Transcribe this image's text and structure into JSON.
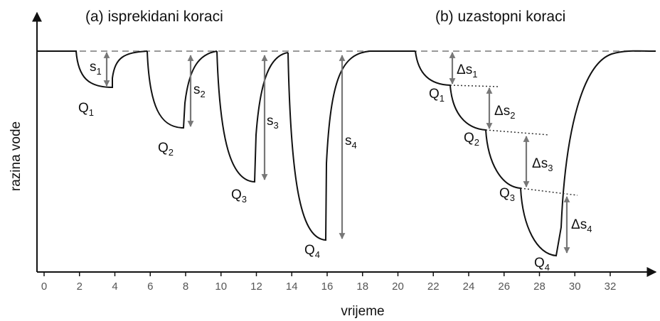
{
  "titles": {
    "a": "(a) isprekidani koraci",
    "b": "(b) uzastopni koraci"
  },
  "axes": {
    "y_label": "razina vode",
    "x_label": "vrijeme",
    "xticks": [
      0,
      2,
      4,
      6,
      8,
      10,
      12,
      14,
      16,
      18,
      20,
      22,
      24,
      26,
      28,
      30,
      32
    ]
  },
  "labels_a": {
    "s": [
      {
        "base": "s",
        "sub": "1"
      },
      {
        "base": "s",
        "sub": "2"
      },
      {
        "base": "s",
        "sub": "3"
      },
      {
        "base": "s",
        "sub": "4"
      }
    ],
    "q": [
      {
        "base": "Q",
        "sub": "1"
      },
      {
        "base": "Q",
        "sub": "2"
      },
      {
        "base": "Q",
        "sub": "3"
      },
      {
        "base": "Q",
        "sub": "4"
      }
    ]
  },
  "labels_b": {
    "ds": [
      {
        "base": "Δs",
        "sub": "1"
      },
      {
        "base": "Δs",
        "sub": "2"
      },
      {
        "base": "Δs",
        "sub": "3"
      },
      {
        "base": "Δs",
        "sub": "4"
      }
    ],
    "q": [
      {
        "base": "Q",
        "sub": "1"
      },
      {
        "base": "Q",
        "sub": "2"
      },
      {
        "base": "Q",
        "sub": "3"
      },
      {
        "base": "Q",
        "sub": "4"
      }
    ]
  }
}
